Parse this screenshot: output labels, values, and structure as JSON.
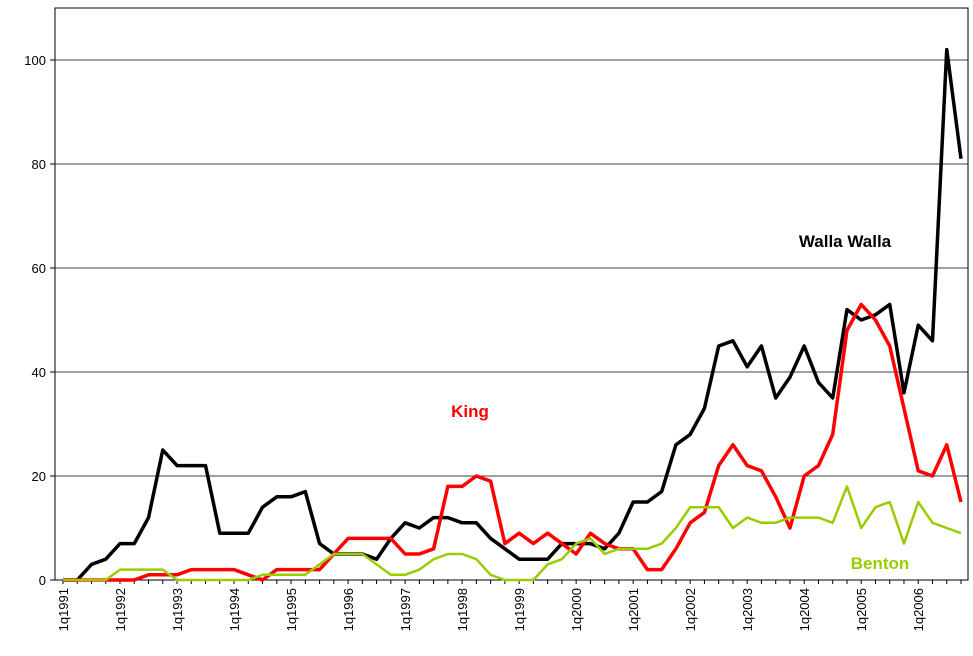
{
  "chart_data": {
    "type": "line",
    "categories": [
      "1q1991",
      null,
      null,
      null,
      "1q1992",
      null,
      null,
      null,
      "1q1993",
      null,
      null,
      null,
      "1q1994",
      null,
      null,
      null,
      "1q1995",
      null,
      null,
      null,
      "1q1996",
      null,
      null,
      null,
      "1q1997",
      null,
      null,
      null,
      "1q1998",
      null,
      null,
      null,
      "1q1999",
      null,
      null,
      null,
      "1q2000",
      null,
      null,
      null,
      "1q2001",
      null,
      null,
      null,
      "1q2002",
      null,
      null,
      null,
      "1q2003",
      null,
      null,
      null,
      "1q2004",
      null,
      null,
      null,
      "1q2005",
      null,
      null,
      null,
      "1q2006",
      null,
      null,
      null
    ],
    "series": [
      {
        "name": "Walla Walla",
        "color": "#000000",
        "values": [
          0,
          0,
          3,
          4,
          7,
          7,
          12,
          25,
          22,
          22,
          22,
          9,
          9,
          9,
          14,
          16,
          16,
          17,
          7,
          5,
          5,
          5,
          4,
          8,
          11,
          10,
          12,
          12,
          11,
          11,
          8,
          6,
          4,
          4,
          4,
          7,
          7,
          7,
          6,
          9,
          15,
          15,
          17,
          26,
          28,
          33,
          45,
          46,
          41,
          45,
          35,
          39,
          45,
          38,
          35,
          52,
          50,
          51,
          53,
          36,
          49,
          46,
          102,
          81
        ]
      },
      {
        "name": "King",
        "color": "#ff0000",
        "values": [
          0,
          0,
          0,
          0,
          0,
          0,
          1,
          1,
          1,
          2,
          2,
          2,
          2,
          1,
          0,
          2,
          2,
          2,
          2,
          5,
          8,
          8,
          8,
          8,
          5,
          5,
          6,
          18,
          18,
          20,
          19,
          7,
          9,
          7,
          9,
          7,
          5,
          9,
          7,
          6,
          6,
          2,
          2,
          6,
          11,
          13,
          22,
          26,
          22,
          21,
          16,
          10,
          20,
          22,
          28,
          48,
          53,
          50,
          45,
          33,
          21,
          20,
          26,
          15
        ]
      },
      {
        "name": "Benton",
        "color": "#99cc00",
        "values": [
          0,
          0,
          0,
          0,
          2,
          2,
          2,
          2,
          0,
          0,
          0,
          0,
          0,
          0,
          1,
          1,
          1,
          1,
          3,
          5,
          5,
          5,
          3,
          1,
          1,
          2,
          4,
          5,
          5,
          4,
          1,
          0,
          0,
          0,
          3,
          4,
          7,
          8,
          5,
          6,
          6,
          6,
          7,
          10,
          14,
          14,
          14,
          10,
          12,
          11,
          11,
          12,
          12,
          12,
          11,
          18,
          10,
          14,
          15,
          7,
          15,
          11,
          10,
          9
        ]
      }
    ],
    "ylim": [
      0,
      110
    ],
    "yticks": [
      0,
      20,
      40,
      60,
      80,
      100
    ],
    "grid": true
  }
}
